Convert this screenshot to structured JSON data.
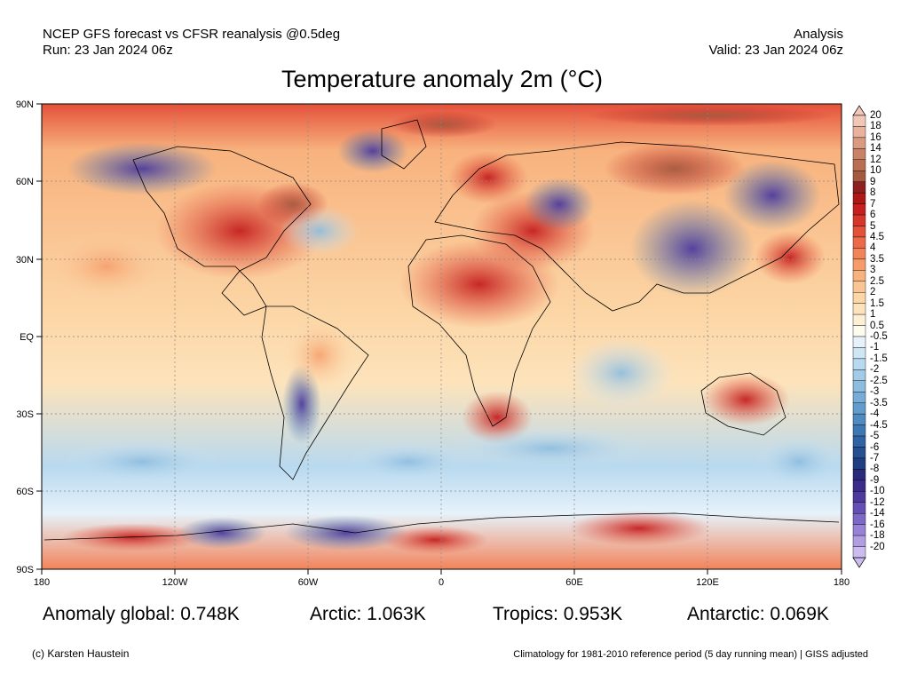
{
  "header": {
    "left_line1": "NCEP GFS forecast vs CFSR reanalysis @0.5deg",
    "left_line2": "Run: 23 Jan 2024 06z",
    "right_line1": "Analysis",
    "right_line2": "Valid: 23 Jan 2024 06z"
  },
  "title": "Temperature anomaly 2m (°C)",
  "axes": {
    "lat_labels": [
      "90N",
      "60N",
      "30N",
      "EQ",
      "30S",
      "60S",
      "90S"
    ],
    "lon_labels": [
      "180",
      "120W",
      "60W",
      "0",
      "60E",
      "120E",
      "180"
    ]
  },
  "colorbar": {
    "labels": [
      "20",
      "18",
      "16",
      "14",
      "12",
      "10",
      "9",
      "8",
      "7",
      "6",
      "5",
      "4.5",
      "4",
      "3.5",
      "3",
      "2.5",
      "2",
      "1.5",
      "1",
      "0.5",
      "-0.5",
      "-1",
      "-1.5",
      "-2",
      "-2.5",
      "-3",
      "-3.5",
      "-4",
      "-4.5",
      "-5",
      "-6",
      "-7",
      "-8",
      "-9",
      "-10",
      "-12",
      "-14",
      "-16",
      "-18",
      "-20"
    ],
    "colors": [
      "#f2c7b8",
      "#e8b29c",
      "#d99a80",
      "#c98266",
      "#b86e52",
      "#a55a40",
      "#8e1f1f",
      "#b01717",
      "#c82020",
      "#d8362a",
      "#e4503a",
      "#ec6a48",
      "#f2845a",
      "#f59c6a",
      "#f8b27e",
      "#fac592",
      "#fcd6a6",
      "#fde3bb",
      "#fef0d4",
      "#fdfaee",
      "#e6f2fa",
      "#cfe6f5",
      "#b8d9ef",
      "#a2cbe7",
      "#8cbcdf",
      "#77acd6",
      "#629ccc",
      "#4f8bc1",
      "#3e78b4",
      "#2f63a5",
      "#264f94",
      "#203f82",
      "#2a2a7a",
      "#3b2b8a",
      "#4e3a9e",
      "#6450b4",
      "#7c68c6",
      "#9682d6",
      "#b09de2",
      "#cbbbee"
    ]
  },
  "stats": {
    "global": "Anomaly global: 0.748K",
    "arctic": "Arctic: 1.063K",
    "tropics": "Tropics: 0.953K",
    "antarctic": "Antarctic: 0.069K"
  },
  "footer": {
    "credit": "(c) Karsten Haustein",
    "note": "Climatology for 1981-2010 reference period (5 day running mean) | GISS adjusted"
  }
}
